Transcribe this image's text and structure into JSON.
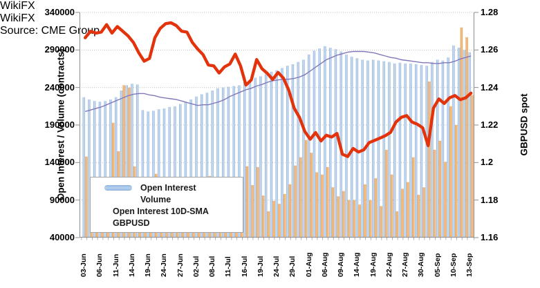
{
  "chart_data": {
    "type": "combo-bar-line",
    "title": "",
    "source": "Source: CME Group",
    "watermark": "WikiFX",
    "left_axis": {
      "label": "Open Interest / Volume (contracts)",
      "min": 40000,
      "max": 340000,
      "tick_labels": [
        "340000",
        "290000",
        "240000",
        "190000",
        "140000",
        "90000",
        "40000"
      ],
      "tick_values": [
        340000,
        290000,
        240000,
        190000,
        140000,
        90000,
        40000
      ]
    },
    "right_axis": {
      "label": "GBPUSD spot",
      "min": 1.16,
      "max": 1.28,
      "tick_labels": [
        "1.28",
        "1.26",
        "1.24",
        "1.22",
        "1.2",
        "1.18",
        "1.16"
      ],
      "tick_values": [
        1.28,
        1.26,
        1.24,
        1.22,
        1.2,
        1.18,
        1.16
      ]
    },
    "x_label_every": 3,
    "dates": [
      "03-Jun",
      "04-Jun",
      "05-Jun",
      "06-Jun",
      "07-Jun",
      "10-Jun",
      "11-Jun",
      "12-Jun",
      "13-Jun",
      "14-Jun",
      "17-Jun",
      "18-Jun",
      "19-Jun",
      "20-Jun",
      "21-Jun",
      "24-Jun",
      "25-Jun",
      "26-Jun",
      "27-Jun",
      "28-Jun",
      "01-Jul",
      "02-Jul",
      "03-Jul",
      "05-Jul",
      "08-Jul",
      "09-Jul",
      "10-Jul",
      "11-Jul",
      "12-Jul",
      "15-Jul",
      "16-Jul",
      "17-Jul",
      "18-Jul",
      "19-Jul",
      "22-Jul",
      "23-Jul",
      "24-Jul",
      "25-Jul",
      "26-Jul",
      "29-Jul",
      "30-Jul",
      "31-Jul",
      "01-Aug",
      "02-Aug",
      "05-Aug",
      "06-Aug",
      "07-Aug",
      "08-Aug",
      "09-Aug",
      "12-Aug",
      "13-Aug",
      "14-Aug",
      "15-Aug",
      "16-Aug",
      "19-Aug",
      "20-Aug",
      "21-Aug",
      "22-Aug",
      "23-Aug",
      "26-Aug",
      "27-Aug",
      "28-Aug",
      "29-Aug",
      "30-Aug",
      "03-Sep",
      "04-Sep",
      "05-Sep",
      "06-Sep",
      "09-Sep",
      "10-Sep",
      "11-Sep",
      "12-Sep",
      "13-Sep"
    ],
    "series": [
      {
        "name": "Open Interest",
        "type": "bar",
        "axis": "left",
        "color": "#9dc3e6",
        "color_edge": "#86abd8",
        "color_center": "#d9e6f6",
        "values": [
          227000,
          224000,
          222000,
          221000,
          222000,
          224000,
          227000,
          236000,
          243000,
          245000,
          244000,
          210000,
          208000,
          209000,
          211000,
          212000,
          214000,
          215000,
          218000,
          221000,
          224000,
          228000,
          231000,
          233000,
          236000,
          239000,
          240000,
          241000,
          242000,
          243000,
          247000,
          250000,
          253000,
          255000,
          258000,
          261000,
          263000,
          266000,
          269000,
          271000,
          274000,
          277000,
          284000,
          289000,
          292000,
          295000,
          293000,
          291000,
          288000,
          284000,
          281000,
          279000,
          277000,
          276000,
          277000,
          276000,
          275000,
          274000,
          272000,
          273000,
          272000,
          272000,
          271000,
          270000,
          269000,
          274000,
          277000,
          276000,
          280000,
          296000,
          293000,
          290000,
          287000
        ]
      },
      {
        "name": "Volume",
        "type": "bar",
        "axis": "left",
        "color": "#f0a355",
        "color_edge": "#e8943e",
        "color_center": "#f7ca97",
        "values": [
          148000,
          92000,
          100000,
          115000,
          105000,
          193000,
          155000,
          243000,
          240000,
          135000,
          120000,
          113000,
          100000,
          125000,
          118000,
          82000,
          95000,
          100000,
          96000,
          110000,
          86000,
          92000,
          72000,
          122000,
          100000,
          118000,
          95000,
          105000,
          112000,
          104000,
          135000,
          110000,
          134000,
          96000,
          75000,
          89000,
          85000,
          98000,
          111000,
          136000,
          147000,
          170000,
          153000,
          127000,
          124000,
          134000,
          107000,
          95000,
          102000,
          90000,
          90000,
          84000,
          111000,
          90000,
          119000,
          82000,
          157000,
          124000,
          75000,
          105000,
          114000,
          147000,
          97000,
          107000,
          248000,
          157000,
          169000,
          141000,
          215000,
          190000,
          320000,
          307000,
          230000
        ]
      },
      {
        "name": "Open Interest 10D-SMA",
        "type": "line",
        "axis": "left",
        "color": "#8177b8",
        "values": [
          208000,
          210000,
          212000,
          214000,
          217000,
          220000,
          223000,
          226000,
          229000,
          231000,
          232000,
          232000,
          230000,
          229000,
          227000,
          226000,
          225000,
          224000,
          222000,
          220000,
          218000,
          216000,
          217000,
          217000,
          219000,
          221000,
          224000,
          228000,
          231000,
          234000,
          237000,
          239000,
          242000,
          244000,
          247000,
          249000,
          250000,
          251000,
          251000,
          252000,
          254000,
          257000,
          262000,
          267000,
          272000,
          277000,
          280000,
          283000,
          285000,
          287000,
          288000,
          288000,
          288000,
          287000,
          286000,
          284000,
          282000,
          280000,
          279000,
          277000,
          276000,
          275000,
          274000,
          273000,
          273000,
          272000,
          272000,
          273000,
          273000,
          275000,
          278000,
          280000,
          282000
        ]
      },
      {
        "name": "GBPUSD",
        "type": "line",
        "axis": "right",
        "color": "#e2330c",
        "values": [
          1.2665,
          1.27,
          1.269,
          1.2695,
          1.2735,
          1.269,
          1.2725,
          1.27,
          1.2675,
          1.264,
          1.2585,
          1.254,
          1.2555,
          1.2665,
          1.2715,
          1.274,
          1.2745,
          1.273,
          1.27,
          1.2695,
          1.264,
          1.2605,
          1.2575,
          1.252,
          1.2515,
          1.2477,
          1.251,
          1.2525,
          1.2578,
          1.2515,
          1.2413,
          1.244,
          1.2549,
          1.25,
          1.2475,
          1.2443,
          1.248,
          1.245,
          1.2385,
          1.229,
          1.224,
          1.2165,
          1.2124,
          1.216,
          1.2115,
          1.2145,
          1.2136,
          1.2155,
          1.2044,
          1.2032,
          1.2075,
          1.2056,
          1.2068,
          1.2106,
          1.2118,
          1.213,
          1.2143,
          1.2161,
          1.2216,
          1.2241,
          1.225,
          1.2216,
          1.2204,
          1.2185,
          1.209,
          1.229,
          1.2339,
          1.2315,
          1.2345,
          1.2357,
          1.2335,
          1.2345,
          1.237
        ]
      }
    ],
    "legend_position": "bottom-left-inside",
    "grid": "horizontal-dotted"
  }
}
